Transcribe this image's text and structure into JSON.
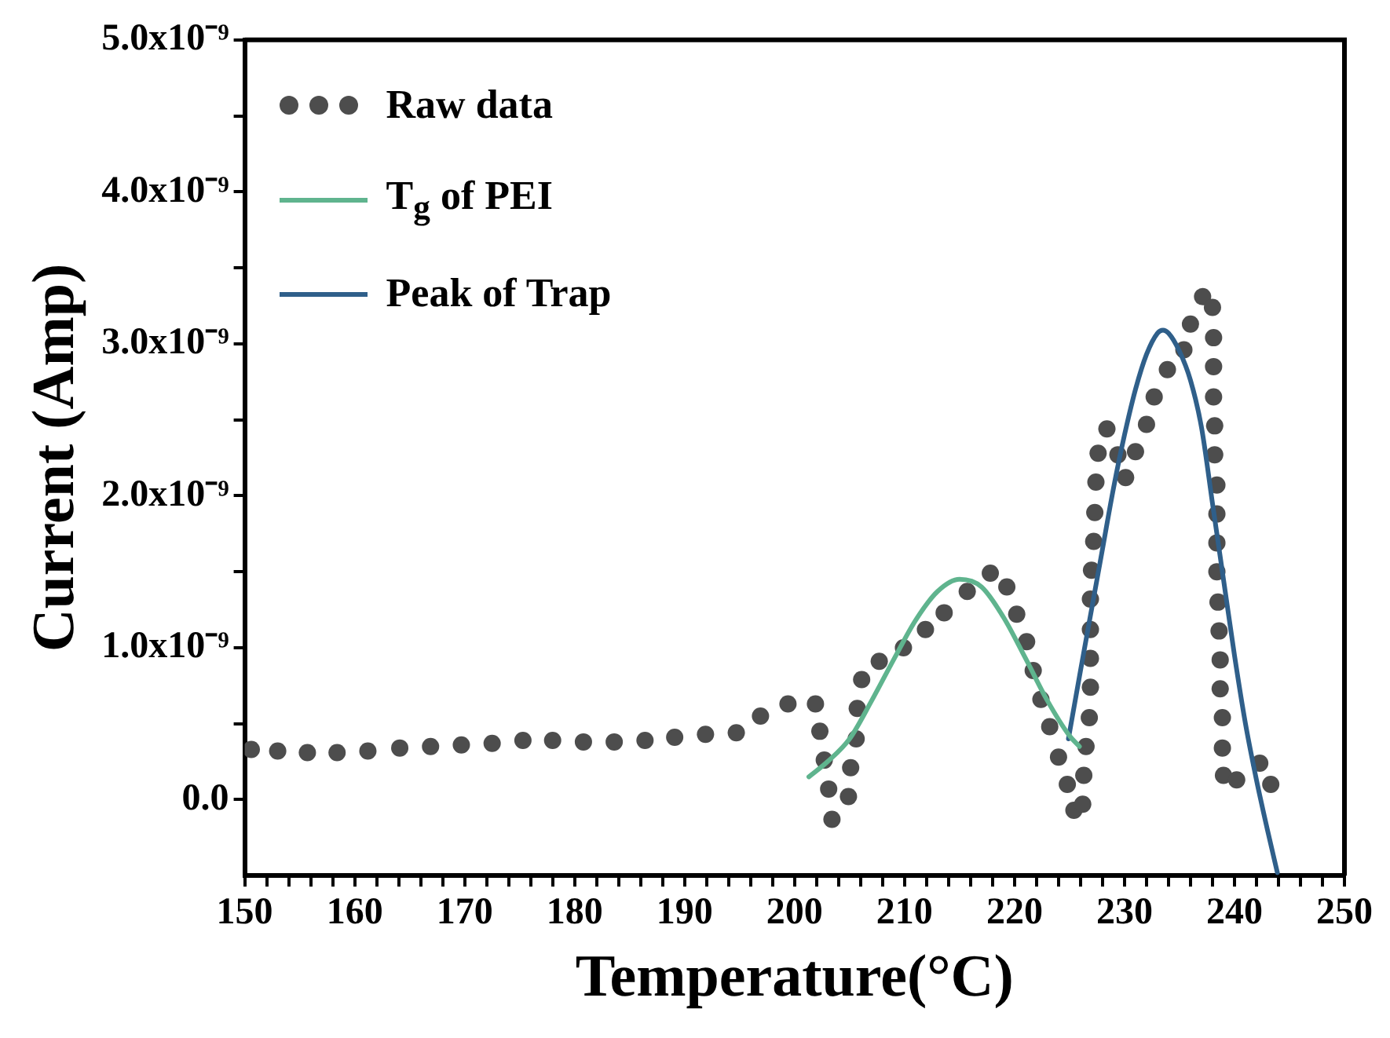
{
  "chart_data": {
    "type": "scatter",
    "xlabel": "Temperature(°C)",
    "ylabel": "Current (Amp)",
    "xlim": [
      150,
      250
    ],
    "ylim": [
      -5e-10,
      5e-09
    ],
    "xticks": [
      150,
      {
        "value": 152,
        "label": null
      },
      {
        "value": 154,
        "label": null
      },
      {
        "value": 156,
        "label": null
      },
      {
        "value": 158,
        "label": null
      },
      160,
      {
        "value": 162,
        "label": null
      },
      {
        "value": 164,
        "label": null
      },
      {
        "value": 166,
        "label": null
      },
      {
        "value": 168,
        "label": null
      },
      170,
      {
        "value": 172,
        "label": null
      },
      {
        "value": 174,
        "label": null
      },
      {
        "value": 176,
        "label": null
      },
      {
        "value": 178,
        "label": null
      },
      180,
      {
        "value": 182,
        "label": null
      },
      {
        "value": 184,
        "label": null
      },
      {
        "value": 186,
        "label": null
      },
      {
        "value": 188,
        "label": null
      },
      190,
      {
        "value": 192,
        "label": null
      },
      {
        "value": 194,
        "label": null
      },
      {
        "value": 196,
        "label": null
      },
      {
        "value": 198,
        "label": null
      },
      200,
      {
        "value": 202,
        "label": null
      },
      {
        "value": 204,
        "label": null
      },
      {
        "value": 206,
        "label": null
      },
      {
        "value": 208,
        "label": null
      },
      210,
      {
        "value": 212,
        "label": null
      },
      {
        "value": 214,
        "label": null
      },
      {
        "value": 216,
        "label": null
      },
      {
        "value": 218,
        "label": null
      },
      220,
      {
        "value": 222,
        "label": null
      },
      {
        "value": 224,
        "label": null
      },
      {
        "value": 226,
        "label": null
      },
      {
        "value": 228,
        "label": null
      },
      230,
      {
        "value": 232,
        "label": null
      },
      {
        "value": 234,
        "label": null
      },
      {
        "value": 236,
        "label": null
      },
      {
        "value": 238,
        "label": null
      },
      240,
      {
        "value": 242,
        "label": null
      },
      {
        "value": 244,
        "label": null
      },
      {
        "value": 246,
        "label": null
      },
      {
        "value": 248,
        "label": null
      },
      250
    ],
    "yticks": [
      {
        "value": 0,
        "label": "0.0"
      },
      {
        "value": 5e-10,
        "label": null
      },
      {
        "value": 1e-09,
        "label": "1.0x10⁻⁹"
      },
      {
        "value": 1.5e-09,
        "label": null
      },
      {
        "value": 2e-09,
        "label": "2.0x10⁻⁹"
      },
      {
        "value": 2.5e-09,
        "label": null
      },
      {
        "value": 3e-09,
        "label": "3.0x10⁻⁹"
      },
      {
        "value": 3.5e-09,
        "label": null
      },
      {
        "value": 4e-09,
        "label": "4.0x10⁻⁹"
      },
      {
        "value": 4.5e-09,
        "label": null
      },
      {
        "value": 5e-09,
        "label": "5.0x10⁻⁹"
      }
    ],
    "legend": "top left",
    "series": [
      {
        "name": "Raw data",
        "type": "scatter",
        "marker": "circle",
        "color": "#4d4d4d",
        "x": [
          150.6,
          153.0,
          155.7,
          158.4,
          161.2,
          164.1,
          166.9,
          169.7,
          172.5,
          175.3,
          178.0,
          180.8,
          183.6,
          186.4,
          189.1,
          191.9,
          194.7,
          196.9,
          199.4,
          201.9,
          202.3,
          202.7,
          203.1,
          203.4,
          204.9,
          205.1,
          205.6,
          205.7,
          206.1,
          207.7,
          209.9,
          211.9,
          213.6,
          215.7,
          217.8,
          219.3,
          220.2,
          221.1,
          221.7,
          222.4,
          223.2,
          224.0,
          224.8,
          225.4,
          226.2,
          226.3,
          226.5,
          226.8,
          226.9,
          226.9,
          226.9,
          226.9,
          227.0,
          227.2,
          227.3,
          227.4,
          227.6,
          228.4,
          229.4,
          230.1,
          231.0,
          232.0,
          232.7,
          233.9,
          235.4,
          236.0,
          237.1,
          238.0,
          238.1,
          238.1,
          238.1,
          238.2,
          238.2,
          238.4,
          238.4,
          238.4,
          238.4,
          238.5,
          238.6,
          238.7,
          238.7,
          238.9,
          238.9,
          239.0,
          240.2,
          242.3,
          243.3
        ],
        "values": [
          3.3e-10,
          3.2e-10,
          3.1e-10,
          3.1e-10,
          3.2e-10,
          3.4e-10,
          3.5e-10,
          3.6e-10,
          3.7e-10,
          3.9e-10,
          3.9e-10,
          3.8e-10,
          3.8e-10,
          3.9e-10,
          4.1e-10,
          4.3e-10,
          4.4e-10,
          5.5e-10,
          6.3e-10,
          6.3e-10,
          4.5e-10,
          2.6e-10,
          7e-11,
          -1.3e-10,
          2e-11,
          2.1e-10,
          4e-10,
          6e-10,
          7.9e-10,
          9.1e-10,
          1e-09,
          1.12e-09,
          1.23e-09,
          1.37e-09,
          1.49e-09,
          1.4e-09,
          1.22e-09,
          1.04e-09,
          8.5e-10,
          6.6e-10,
          4.8e-10,
          2.8e-10,
          1e-10,
          -7e-11,
          -3e-11,
          1.6e-10,
          3.5e-10,
          5.4e-10,
          7.4e-10,
          9.3e-10,
          1.12e-09,
          1.32e-09,
          1.51e-09,
          1.7e-09,
          1.89e-09,
          2.09e-09,
          2.28e-09,
          2.44e-09,
          2.27e-09,
          2.12e-09,
          2.29e-09,
          2.47e-09,
          2.65e-09,
          2.83e-09,
          2.96e-09,
          3.13e-09,
          3.31e-09,
          3.24e-09,
          3.04e-09,
          2.85e-09,
          2.65e-09,
          2.46e-09,
          2.27e-09,
          2.07e-09,
          1.88e-09,
          1.69e-09,
          1.5e-09,
          1.3e-09,
          1.11e-09,
          9.2e-10,
          7.3e-10,
          5.4e-10,
          3.4e-10,
          1.6e-10,
          1.3e-10,
          2.4e-10,
          1e-10
        ]
      },
      {
        "name": "T$_{g}$ of PEI",
        "type": "line",
        "marker": "none",
        "color": "#5fb48e",
        "x": [
          201.3,
          203,
          205,
          207,
          209,
          211,
          213,
          215,
          217,
          219,
          221,
          223,
          225,
          225.9
        ],
        "values": [
          1.5e-10,
          2.5e-10,
          4e-10,
          6.5e-10,
          9.2e-10,
          1.18e-09,
          1.37e-09,
          1.45e-09,
          1.4e-09,
          1.2e-09,
          9.3e-10,
          6.5e-10,
          4.2e-10,
          3.5e-10
        ]
      },
      {
        "name": "Peak of Trap",
        "type": "line",
        "marker": "none",
        "color": "#2f5f8a",
        "x": [
          224.9,
          226,
          227,
          228,
          229,
          230,
          231,
          232,
          233,
          233.5,
          234,
          235,
          236,
          237,
          238,
          239,
          240,
          241,
          242,
          243,
          243.9
        ],
        "values": [
          4e-10,
          8.5e-10,
          1.25e-09,
          1.65e-09,
          2.05e-09,
          2.4e-09,
          2.7e-09,
          2.93e-09,
          3.07e-09,
          3.09e-09,
          3.07e-09,
          2.95e-09,
          2.76e-09,
          2.45e-09,
          1.95e-09,
          1.45e-09,
          9.5e-10,
          5e-10,
          1.3e-10,
          -2e-10,
          -4.8e-10
        ]
      }
    ]
  }
}
